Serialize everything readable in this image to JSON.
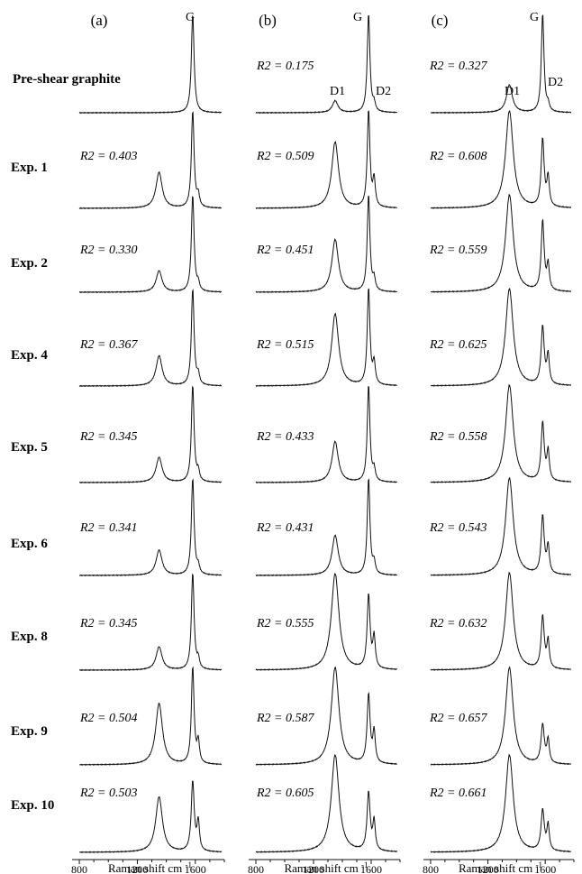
{
  "chart_data": {
    "type": "line",
    "panel_labels": [
      "(a)",
      "(b)",
      "(c)"
    ],
    "row_labels": [
      "Pre-shear graphite",
      "Exp. 1",
      "Exp. 2",
      "Exp. 4",
      "Exp. 5",
      "Exp. 6",
      "Exp. 8",
      "Exp. 9",
      "Exp. 10"
    ],
    "xlabel": "Raman shift cm",
    "xlabel_sup": "-1",
    "xlim": [
      750,
      1800
    ],
    "xticks": [
      "800",
      "1200",
      "1600"
    ],
    "xtick_values": [
      800,
      1200,
      1600
    ],
    "peak_labels": {
      "g": "G",
      "d1": "D1",
      "d2": "D2"
    },
    "peak_positions": {
      "d1": 1350,
      "g": 1582,
      "d2": 1620
    },
    "r2_prefix": "R2 = ",
    "r2_values": [
      [
        "",
        "0.175",
        "0.327"
      ],
      [
        "0.403",
        "0.509",
        "0.608"
      ],
      [
        "0.330",
        "0.451",
        "0.559"
      ],
      [
        "0.367",
        "0.515",
        "0.625"
      ],
      [
        "0.345",
        "0.433",
        "0.558"
      ],
      [
        "0.341",
        "0.431",
        "0.543"
      ],
      [
        "0.345",
        "0.555",
        "0.632"
      ],
      [
        "0.504",
        "0.587",
        "0.657"
      ],
      [
        "0.503",
        "0.605",
        "0.661"
      ]
    ],
    "series": [
      {
        "panel": "(a)",
        "d1_intensity": [
          0.0,
          0.37,
          0.22,
          0.31,
          0.26,
          0.26,
          0.24,
          0.63,
          0.57
        ],
        "g_intensity": [
          1.0,
          1.0,
          1.0,
          1.0,
          1.0,
          1.0,
          1.0,
          1.0,
          0.72
        ],
        "d2_intensity": [
          0.0,
          0.12,
          0.08,
          0.1,
          0.1,
          0.08,
          0.1,
          0.22,
          0.3
        ]
      },
      {
        "panel": "(b)",
        "d1_intensity": [
          0.12,
          0.68,
          0.54,
          0.74,
          0.42,
          0.41,
          0.99,
          1.0,
          1.0
        ],
        "g_intensity": [
          1.0,
          1.0,
          1.0,
          1.0,
          1.0,
          1.0,
          0.76,
          0.71,
          0.6
        ],
        "d2_intensity": [
          0.08,
          0.28,
          0.12,
          0.22,
          0.12,
          0.12,
          0.32,
          0.32,
          0.3
        ]
      },
      {
        "panel": "(c)",
        "d1_intensity": [
          0.28,
          1.0,
          1.0,
          1.0,
          1.0,
          1.0,
          1.0,
          1.0,
          1.0
        ],
        "g_intensity": [
          1.0,
          0.7,
          0.72,
          0.6,
          0.6,
          0.6,
          0.54,
          0.4,
          0.42
        ],
        "d2_intensity": [
          0.07,
          0.3,
          0.26,
          0.3,
          0.3,
          0.28,
          0.28,
          0.24,
          0.26
        ]
      }
    ]
  }
}
